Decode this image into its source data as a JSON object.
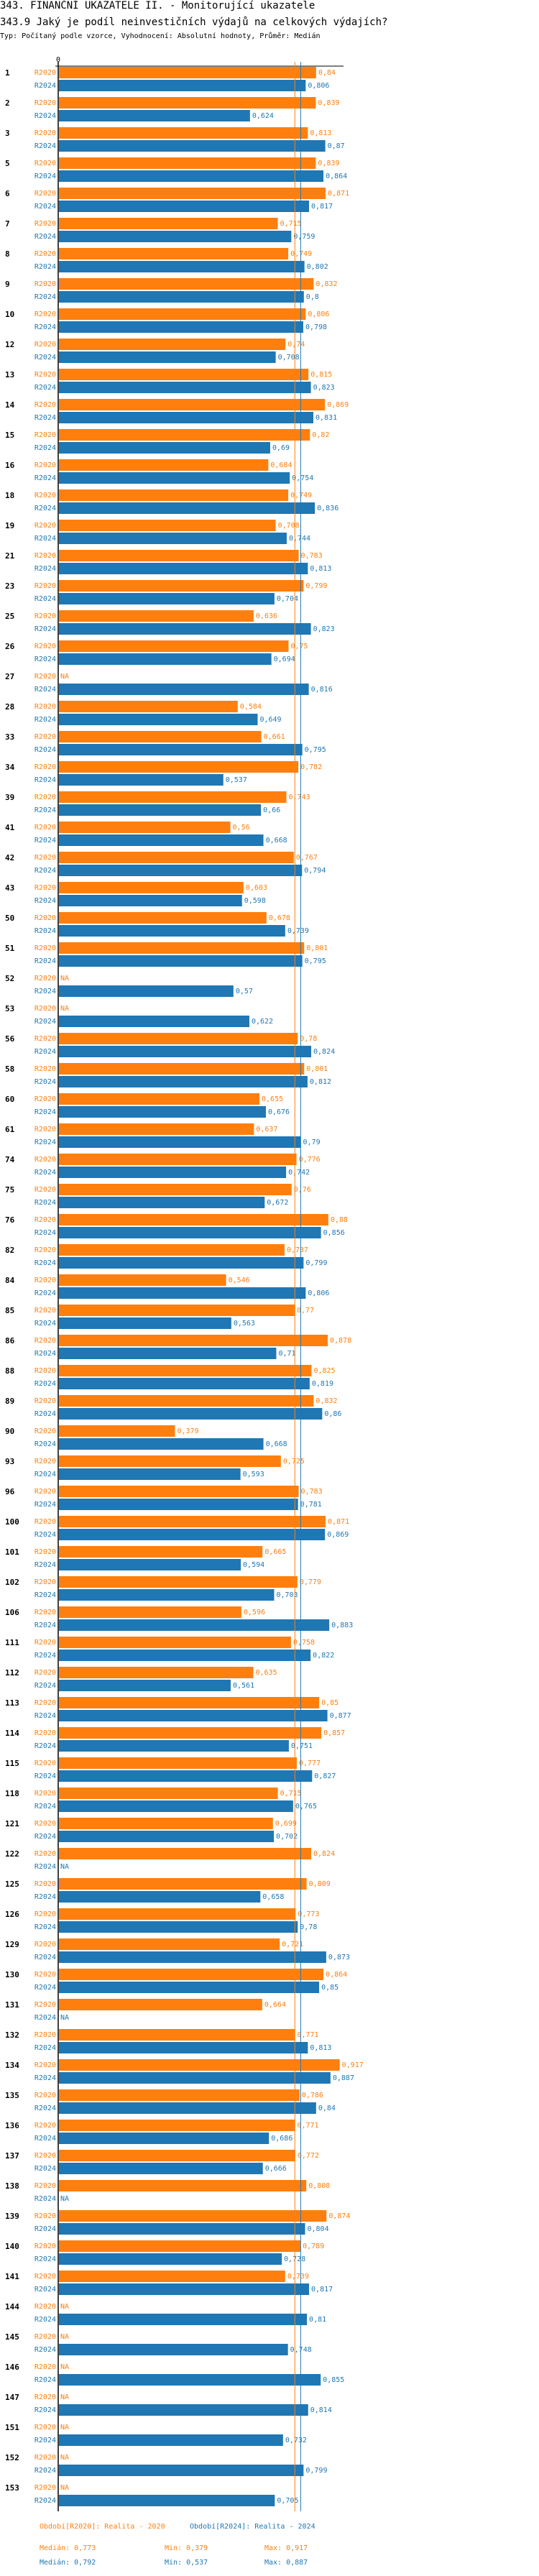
{
  "header": {
    "title": "343. FINANČNÍ UKAZATELE II. - Monitorující ukazatele",
    "question": "343.9 Jaký je podíl neinvestičních výdajů na celkových výdajích?",
    "meta": "Typ: Počítaný podle vzorce, Vyhodnocení: Absolutní hodnoty, Průměr: Medián"
  },
  "colors": {
    "R2020": "#ff7f0e",
    "R2024": "#1f77b4",
    "axis": "#000000"
  },
  "chart_data": {
    "type": "bar",
    "orientation": "horizontal",
    "title": "343.9 Jaký je podíl neinvestičních výdajů na celkových výdajích?",
    "xlabel": "",
    "ylabel": "",
    "xlim": [
      0,
      1
    ],
    "x_tick_labels": [
      "0"
    ],
    "grid": false,
    "na_label": "NA",
    "series_names": [
      "R2020",
      "R2024"
    ],
    "categories": [
      "1",
      "2",
      "3",
      "5",
      "6",
      "7",
      "8",
      "9",
      "10",
      "12",
      "13",
      "14",
      "15",
      "16",
      "18",
      "19",
      "21",
      "23",
      "25",
      "26",
      "27",
      "28",
      "33",
      "34",
      "39",
      "41",
      "42",
      "43",
      "50",
      "51",
      "52",
      "53",
      "56",
      "58",
      "60",
      "61",
      "74",
      "75",
      "76",
      "82",
      "84",
      "85",
      "86",
      "88",
      "89",
      "90",
      "93",
      "96",
      "100",
      "101",
      "102",
      "106",
      "111",
      "112",
      "113",
      "114",
      "115",
      "118",
      "121",
      "122",
      "125",
      "126",
      "129",
      "130",
      "131",
      "132",
      "134",
      "135",
      "136",
      "137",
      "138",
      "139",
      "140",
      "141",
      "144",
      "145",
      "146",
      "147",
      "151",
      "152",
      "153"
    ],
    "series": [
      {
        "name": "R2020",
        "values": [
          0.84,
          0.839,
          0.813,
          0.839,
          0.871,
          0.715,
          0.749,
          0.832,
          0.806,
          0.74,
          0.815,
          0.869,
          0.82,
          0.684,
          0.749,
          0.708,
          0.783,
          0.799,
          0.636,
          0.75,
          null,
          0.584,
          0.661,
          0.782,
          0.743,
          0.56,
          0.767,
          0.603,
          0.678,
          0.801,
          null,
          null,
          0.78,
          0.801,
          0.655,
          0.637,
          0.776,
          0.76,
          0.88,
          0.737,
          0.546,
          0.77,
          0.878,
          0.825,
          0.832,
          0.379,
          0.725,
          0.783,
          0.871,
          0.665,
          0.779,
          0.596,
          0.758,
          0.635,
          0.85,
          0.857,
          0.777,
          0.715,
          0.699,
          0.824,
          0.809,
          0.773,
          0.721,
          0.864,
          0.664,
          0.771,
          0.917,
          0.786,
          0.771,
          0.772,
          0.808,
          0.874,
          0.789,
          0.739,
          null,
          null,
          null,
          null,
          null,
          null,
          null
        ]
      },
      {
        "name": "R2024",
        "values": [
          0.806,
          0.624,
          0.87,
          0.864,
          0.817,
          0.759,
          0.802,
          0.8,
          0.798,
          0.708,
          0.823,
          0.831,
          0.69,
          0.754,
          0.836,
          0.744,
          0.813,
          0.704,
          0.823,
          0.694,
          0.816,
          0.649,
          0.795,
          0.537,
          0.66,
          0.668,
          0.794,
          0.598,
          0.739,
          0.795,
          0.57,
          0.622,
          0.824,
          0.812,
          0.676,
          0.79,
          0.742,
          0.672,
          0.856,
          0.799,
          0.806,
          0.563,
          0.71,
          0.819,
          0.86,
          0.668,
          0.593,
          0.781,
          0.869,
          0.594,
          0.703,
          0.883,
          0.822,
          0.561,
          0.877,
          0.751,
          0.827,
          0.765,
          0.702,
          null,
          0.658,
          0.78,
          0.873,
          0.85,
          null,
          0.813,
          0.887,
          0.84,
          0.686,
          0.666,
          null,
          0.804,
          0.728,
          0.817,
          0.81,
          0.748,
          0.855,
          0.814,
          0.732,
          0.799,
          0.705
        ]
      }
    ],
    "reference_lines": [
      {
        "series": "R2020",
        "label": "Medián",
        "value": 0.773
      },
      {
        "series": "R2024",
        "label": "Medián",
        "value": 0.792
      }
    ],
    "legend": {
      "placement": "bottom",
      "entries": [
        {
          "series": "R2020",
          "text": "Období[R2020]: Realita - 2020"
        },
        {
          "series": "R2024",
          "text": "Období[R2024]: Realita - 2024"
        }
      ]
    },
    "summary": [
      {
        "series": "R2020",
        "median": "Medián: 0,773",
        "min": "Min: 0,379",
        "max": "Max: 0,917"
      },
      {
        "series": "R2024",
        "median": "Medián: 0,792",
        "min": "Min: 0,537",
        "max": "Max: 0,887"
      }
    ]
  }
}
